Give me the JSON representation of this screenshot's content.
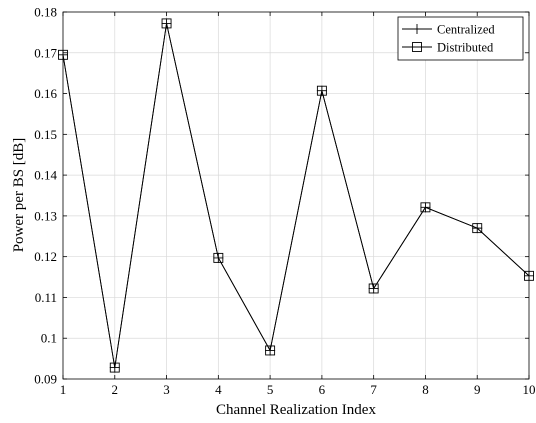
{
  "chart_data": {
    "type": "line",
    "xlabel": "Channel Realization Index",
    "ylabel": "Power per BS [dB]",
    "x": [
      1,
      2,
      3,
      4,
      5,
      6,
      7,
      8,
      9,
      10
    ],
    "xlim": [
      1,
      10
    ],
    "ylim": [
      0.09,
      0.18
    ],
    "xticks": [
      "1",
      "2",
      "3",
      "4",
      "5",
      "6",
      "7",
      "8",
      "9",
      "10"
    ],
    "yticks": [
      "0.09",
      "0.1",
      "0.11",
      "0.12",
      "0.13",
      "0.14",
      "0.15",
      "0.16",
      "0.17",
      "0.18"
    ],
    "grid": true,
    "legend_position": "top-right",
    "series": [
      {
        "name": "Centralized",
        "marker": "plus",
        "color": "#000000",
        "values": [
          0.1695,
          0.0928,
          0.1772,
          0.1197,
          0.097,
          0.1607,
          0.1122,
          0.1321,
          0.127,
          0.1153
        ]
      },
      {
        "name": "Distributed",
        "marker": "square",
        "color": "#000000",
        "values": [
          0.1695,
          0.0928,
          0.1772,
          0.1197,
          0.097,
          0.1607,
          0.1122,
          0.1321,
          0.127,
          0.1153
        ]
      }
    ]
  }
}
